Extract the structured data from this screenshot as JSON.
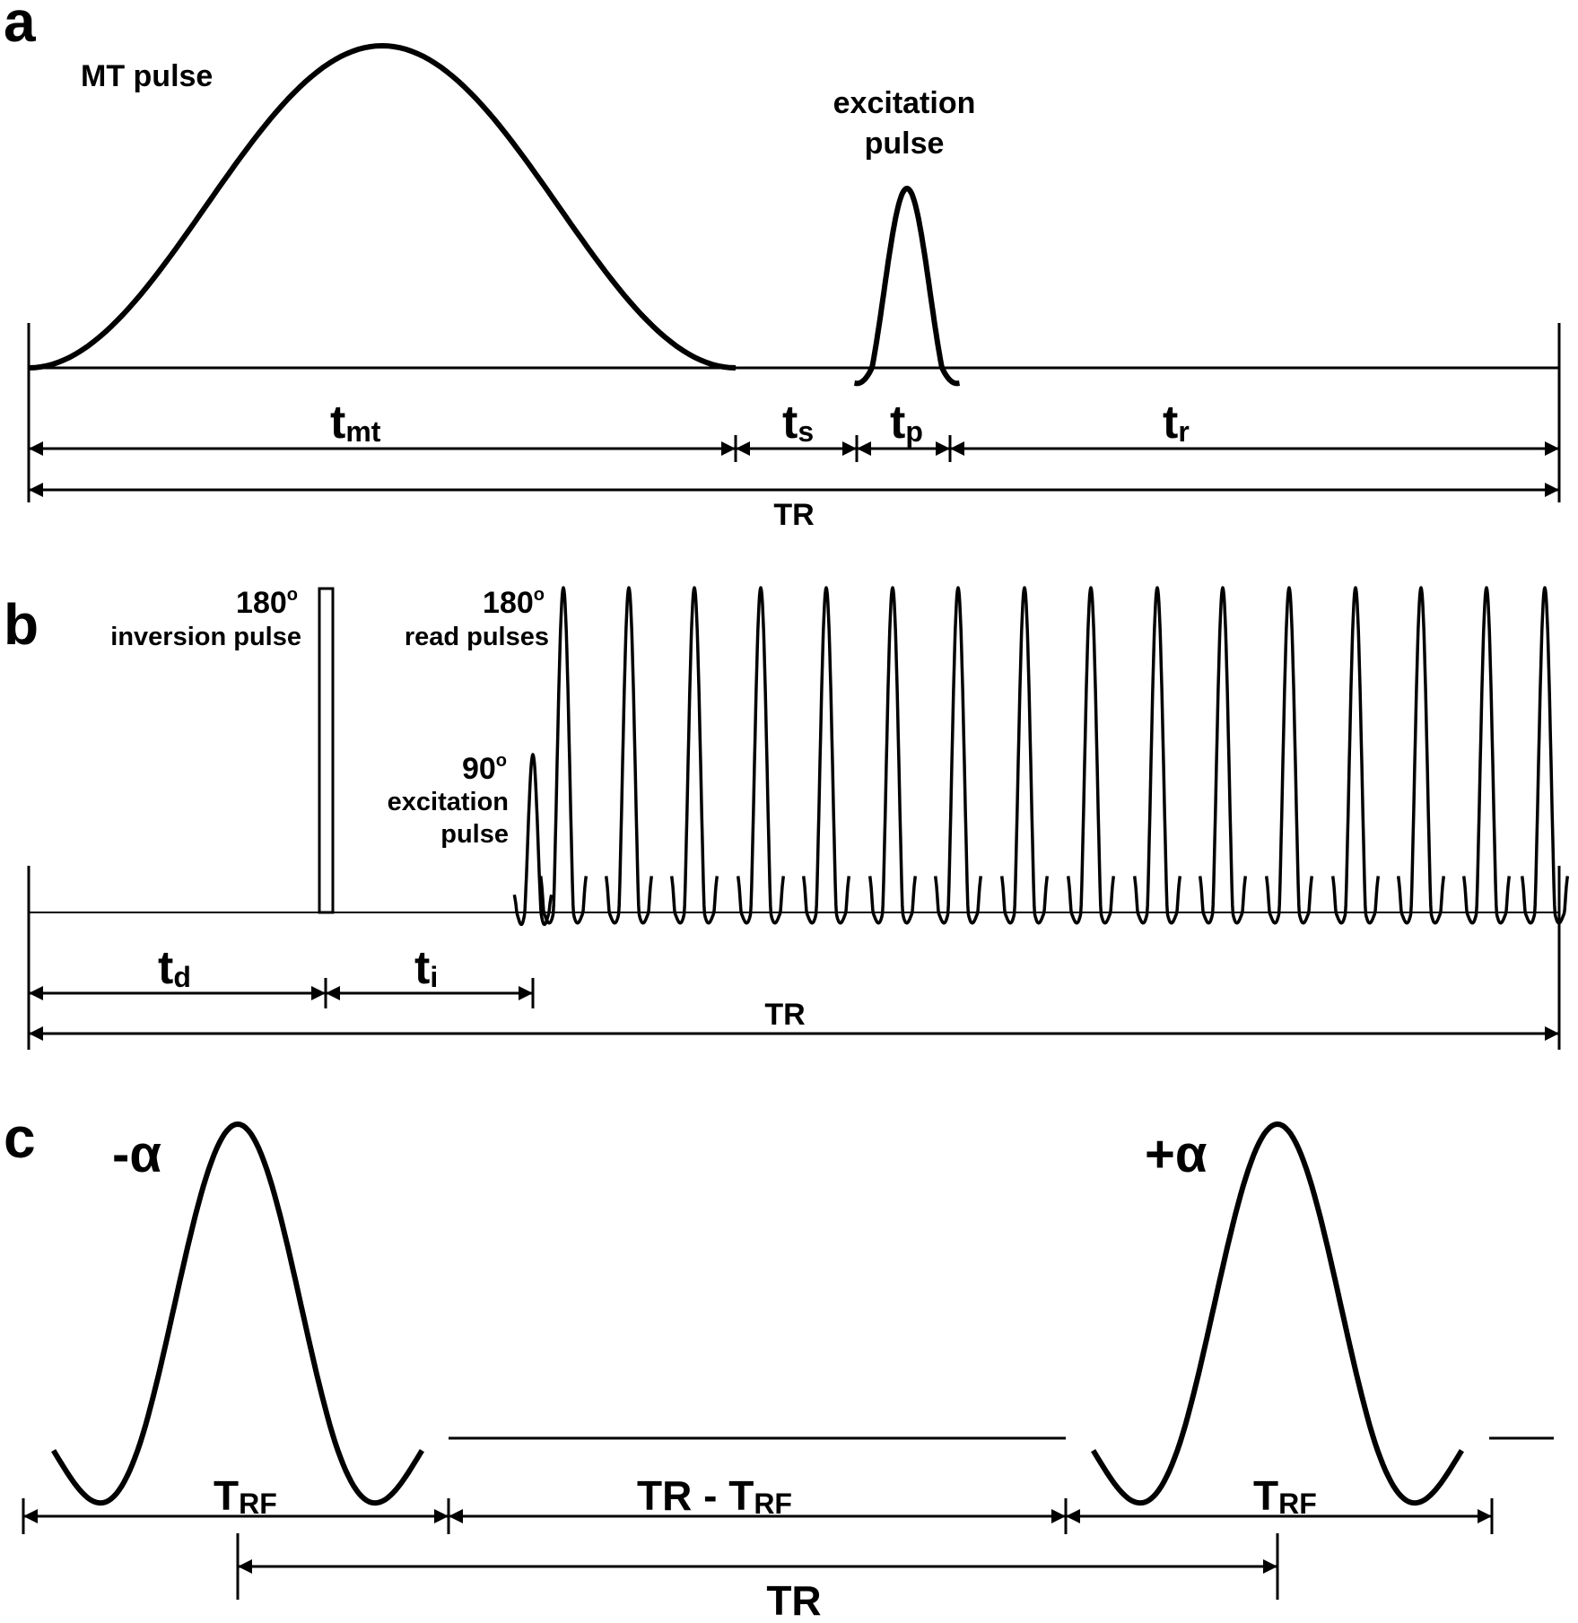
{
  "panels": {
    "a": {
      "letter": "a",
      "mt_pulse": "MT pulse",
      "excitation_line1": "excitation",
      "excitation_line2": "pulse",
      "intervals": [
        {
          "main": "t",
          "sub": "mt"
        },
        {
          "main": "t",
          "sub": "s"
        },
        {
          "main": "t",
          "sub": "p"
        },
        {
          "main": "t",
          "sub": "r"
        }
      ],
      "tr": "TR"
    },
    "b": {
      "letter": "b",
      "inversion_deg": "180",
      "inversion_sup": "o",
      "inversion_label": "inversion pulse",
      "read_deg": "180",
      "read_sup": "o",
      "read_label": "read pulses",
      "excitation_deg": "90",
      "excitation_sup": "o",
      "excitation_line1": "excitation",
      "excitation_line2": "pulse",
      "intervals": [
        {
          "main": "t",
          "sub": "d"
        },
        {
          "main": "t",
          "sub": "i"
        }
      ],
      "tr": "TR"
    },
    "c": {
      "letter": "c",
      "neg_alpha": "-α",
      "pos_alpha": "+α",
      "trf_main": "T",
      "trf_sub": "RF",
      "gap_prefix": "TR - ",
      "tr": "TR"
    }
  }
}
